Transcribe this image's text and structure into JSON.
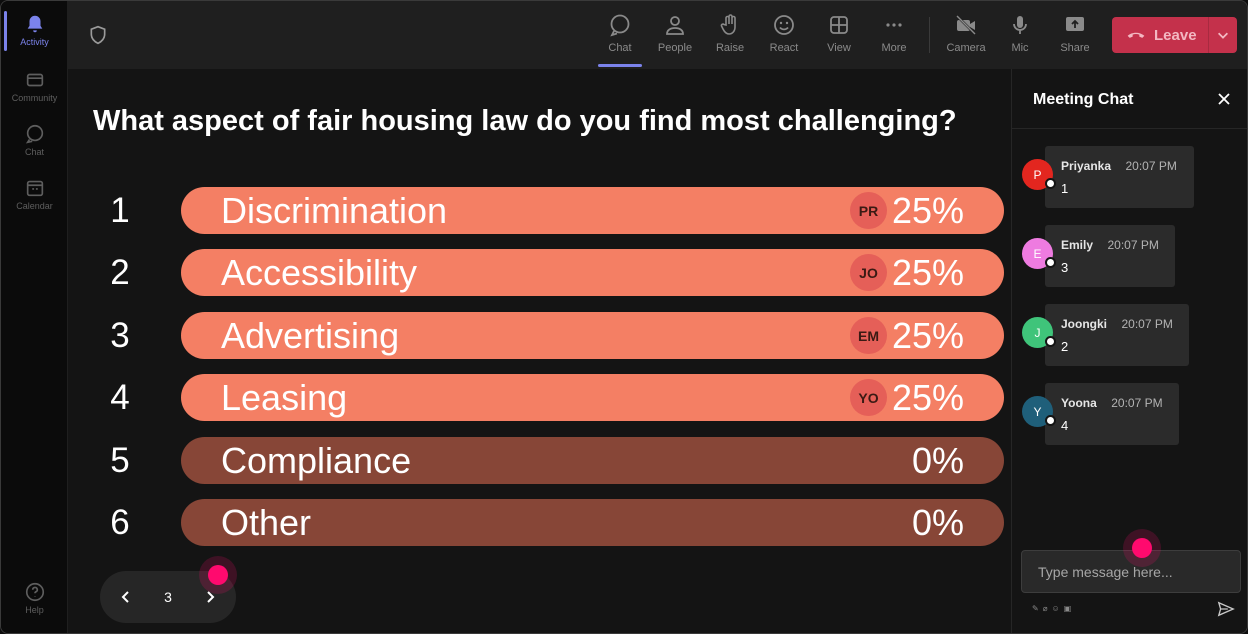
{
  "rail": {
    "items": [
      {
        "label": "Activity",
        "icon": "bell-icon",
        "active": true
      },
      {
        "label": "Community",
        "icon": "community-icon",
        "active": false
      },
      {
        "label": "Chat",
        "icon": "chat-icon",
        "active": false
      },
      {
        "label": "Calendar",
        "icon": "calendar-icon",
        "active": false
      }
    ],
    "help": {
      "label": "Help",
      "icon": "help-icon"
    }
  },
  "topbar": {
    "items": [
      {
        "label": "Chat",
        "icon": "chat-icon",
        "active": true
      },
      {
        "label": "People",
        "icon": "people-icon",
        "active": false
      },
      {
        "label": "Raise",
        "icon": "raise-hand-icon",
        "active": false
      },
      {
        "label": "React",
        "icon": "react-icon",
        "active": false
      },
      {
        "label": "View",
        "icon": "view-icon",
        "active": false
      },
      {
        "label": "More",
        "icon": "more-icon",
        "active": false
      },
      {
        "label": "Camera",
        "icon": "camera-off-icon",
        "active": false
      },
      {
        "label": "Mic",
        "icon": "mic-icon",
        "active": false
      },
      {
        "label": "Share",
        "icon": "share-icon",
        "active": false
      }
    ],
    "leave_label": "Leave",
    "accent_color": "#7b83eb",
    "leave_color": "#c4314b"
  },
  "poll": {
    "question": "What aspect of fair housing law do you find most challenging?",
    "options": [
      {
        "number": "1",
        "label": "Discrimination",
        "badge": "PR",
        "percent": "25%"
      },
      {
        "number": "2",
        "label": "Accessibility",
        "badge": "JO",
        "percent": "25%"
      },
      {
        "number": "3",
        "label": "Advertising",
        "badge": "EM",
        "percent": "25%"
      },
      {
        "number": "4",
        "label": "Leasing",
        "badge": "YO",
        "percent": "25%"
      },
      {
        "number": "5",
        "label": "Compliance",
        "badge": "",
        "percent": "0%"
      },
      {
        "number": "6",
        "label": "Other",
        "badge": "",
        "percent": "0%"
      }
    ],
    "bar_color_selected": "#f47f64",
    "bar_color_empty": "#874637",
    "page": "3"
  },
  "chat": {
    "title": "Meeting Chat",
    "messages": [
      {
        "initial": "P",
        "name": "Priyanka",
        "time": "20:07 PM",
        "text": "1",
        "color": "#e3261f"
      },
      {
        "initial": "E",
        "name": "Emily",
        "time": "20:07 PM",
        "text": "3",
        "color": "#ee7be0"
      },
      {
        "initial": "J",
        "name": "Joongki",
        "time": "20:07 PM",
        "text": "2",
        "color": "#3fc47a"
      },
      {
        "initial": "Y",
        "name": "Yoona",
        "time": "20:07 PM",
        "text": "4",
        "color": "#1f5f7a"
      }
    ],
    "input_placeholder": "Type message here...",
    "marker_color": "#ff0a6e"
  }
}
